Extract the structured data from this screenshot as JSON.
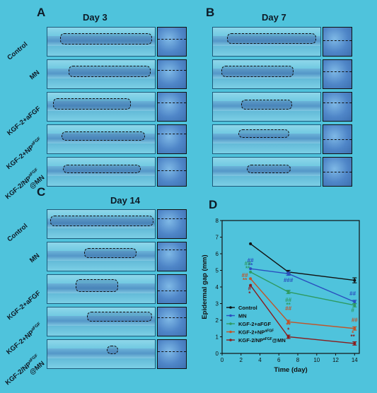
{
  "panels": {
    "A": {
      "letter": "A",
      "title": "Day 3"
    },
    "B": {
      "letter": "B",
      "title": "Day 7"
    },
    "C": {
      "letter": "C",
      "title": "Day 14"
    },
    "D": {
      "letter": "D"
    }
  },
  "row_labels": {
    "control": "Control",
    "mn": "MN",
    "kgf_afgf": "KGF-2+aFGF",
    "kgf_np_prefix": "KGF-2+NP",
    "kgf_np_sup": "aFGF",
    "kgf_npmn_prefix": "KGF-2/NP",
    "kgf_npmn_sup": "aFGF",
    "kgf_npmn_suffix": "@MN"
  },
  "chart_data": {
    "type": "line",
    "xlabel": "Time (day)",
    "ylabel": "Epidermal gap (mm)",
    "xlim": [
      0,
      14.5
    ],
    "ylim": [
      0,
      8
    ],
    "xticks": [
      0,
      2,
      4,
      6,
      8,
      10,
      12,
      14
    ],
    "yticks": [
      0,
      1,
      2,
      3,
      4,
      5,
      6,
      7,
      8
    ],
    "x": [
      3,
      7,
      14
    ],
    "series": [
      {
        "name": "Control",
        "color": "#111111",
        "values": [
          6.6,
          4.9,
          4.4
        ],
        "err": [
          0,
          0.1,
          0.15
        ]
      },
      {
        "name": "MN",
        "color": "#2a4fbf",
        "values": [
          5.1,
          4.8,
          3.1
        ],
        "err": [
          0,
          0.1,
          0.1
        ]
      },
      {
        "name": "KGF-2+aFGF",
        "color": "#2e9a62",
        "values": [
          4.9,
          3.7,
          2.9
        ],
        "err": [
          0,
          0.1,
          0.1
        ]
      },
      {
        "name": "KGF-2+NPaFGF",
        "color": "#c0552a",
        "values": [
          4.5,
          1.9,
          1.5
        ],
        "err": [
          0,
          0.1,
          0.1
        ]
      },
      {
        "name": "KGF-2/NPaFGF@MN",
        "color": "#8a1d1d",
        "values": [
          4.1,
          1.0,
          0.6
        ],
        "err": [
          0,
          0.1,
          0.1
        ]
      }
    ],
    "legend": {
      "placement": "bottom-left",
      "entries": [
        {
          "label": "Control"
        },
        {
          "label": "MN"
        },
        {
          "label": "KGF-2+aFGF"
        },
        {
          "label_prefix": "KGF-2+NP",
          "label_sup": "aFGF"
        },
        {
          "label_prefix": "KGF-2/NP",
          "label_sup": "aFGF",
          "label_suffix": "@MN"
        }
      ]
    },
    "annotations": [
      {
        "text": "##",
        "color": "#2a4fbf",
        "x": 3,
        "y": 5.5
      },
      {
        "text": "**",
        "color": "#2a4fbf",
        "x": 3,
        "y": 5.2
      },
      {
        "text": "##",
        "color": "#2e9a62",
        "x": 2.7,
        "y": 5.3
      },
      {
        "text": "**",
        "color": "#2e9a62",
        "x": 2.7,
        "y": 5.0
      },
      {
        "text": "##",
        "color": "#c0552a",
        "x": 2.4,
        "y": 4.6
      },
      {
        "text": "**",
        "color": "#c0552a",
        "x": 2.4,
        "y": 4.3
      },
      {
        "text": "#",
        "color": "#8a1d1d",
        "x": 2.9,
        "y": 3.8
      },
      {
        "text": "*",
        "color": "#8a1d1d",
        "x": 2.9,
        "y": 3.5
      },
      {
        "text": "###",
        "color": "#2a4fbf",
        "x": 7,
        "y": 4.3
      },
      {
        "text": "##",
        "color": "#2e9a62",
        "x": 7,
        "y": 3.1
      },
      {
        "text": "**",
        "color": "#2e9a62",
        "x": 7,
        "y": 2.8
      },
      {
        "text": "##",
        "color": "#c0552a",
        "x": 7,
        "y": 2.6
      },
      {
        "text": "**",
        "color": "#c0552a",
        "x": 7,
        "y": 1.6
      },
      {
        "text": "*",
        "color": "#8a1d1d",
        "x": 7,
        "y": 1.3
      },
      {
        "text": "##",
        "color": "#2a4fbf",
        "x": 13.8,
        "y": 3.5
      },
      {
        "text": "#",
        "color": "#2e9a62",
        "x": 13.8,
        "y": 2.5
      },
      {
        "text": "##",
        "color": "#c0552a",
        "x": 14,
        "y": 1.9
      },
      {
        "text": "*",
        "color": "#c0552a",
        "x": 13.8,
        "y": 1.1
      },
      {
        "text": "**",
        "color": "#8a1d1d",
        "x": 13.8,
        "y": 0.9
      }
    ]
  }
}
